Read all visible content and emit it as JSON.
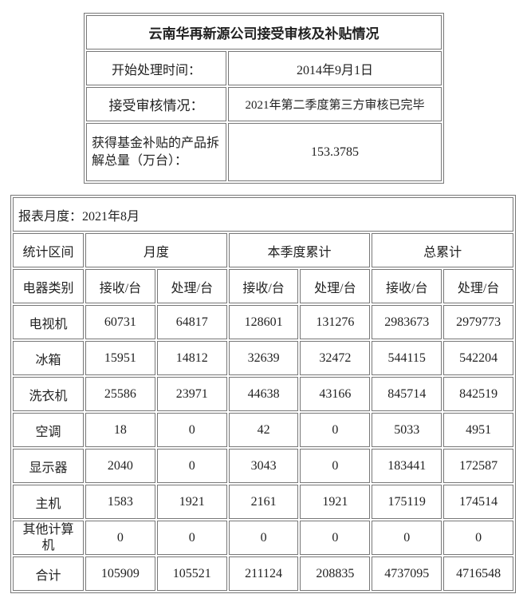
{
  "summary": {
    "title": "云南华再新源公司接受审核及补贴情况",
    "rows": [
      {
        "label": "开始处理时间：",
        "value": "2014年9月1日"
      },
      {
        "label": "接受审核情况：",
        "value": "2021年第二季度第三方审核已完毕"
      },
      {
        "label": "获得基金补贴的产品拆解总量（万台）：",
        "value": "153.3785"
      }
    ]
  },
  "stats": {
    "report_month": "报表月度：2021年8月",
    "period_header": "统计区间",
    "groups": [
      "月度",
      "本季度累计",
      "总累计"
    ],
    "category_header": "电器类别",
    "sub_headers": [
      "接收/台",
      "处理/台",
      "接收/台",
      "处理/台",
      "接收/台",
      "处理/台"
    ],
    "rows": [
      {
        "name": "电视机",
        "values": [
          "60731",
          "64817",
          "128601",
          "131276",
          "2983673",
          "2979773"
        ]
      },
      {
        "name": "冰箱",
        "values": [
          "15951",
          "14812",
          "32639",
          "32472",
          "544115",
          "542204"
        ]
      },
      {
        "name": "洗衣机",
        "values": [
          "25586",
          "23971",
          "44638",
          "43166",
          "845714",
          "842519"
        ]
      },
      {
        "name": "空调",
        "values": [
          "18",
          "0",
          "42",
          "0",
          "5033",
          "4951"
        ]
      },
      {
        "name": "显示器",
        "values": [
          "2040",
          "0",
          "3043",
          "0",
          "183441",
          "172587"
        ]
      },
      {
        "name": "主机",
        "values": [
          "1583",
          "1921",
          "2161",
          "1921",
          "175119",
          "174514"
        ]
      },
      {
        "name": "其他计算机",
        "values": [
          "0",
          "0",
          "0",
          "0",
          "0",
          "0"
        ]
      },
      {
        "name": "合计",
        "values": [
          "105909",
          "105521",
          "211124",
          "208835",
          "4737095",
          "4716548"
        ]
      }
    ]
  }
}
